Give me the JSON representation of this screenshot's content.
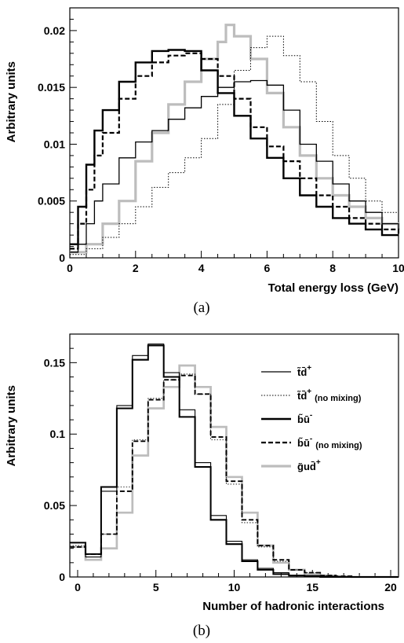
{
  "chart_data": [
    {
      "type": "line",
      "xlabel": "Total energy loss (GeV)",
      "ylabel": "Arbitrary units",
      "xlim": [
        0,
        10
      ],
      "ylim": [
        0,
        0.022
      ],
      "xticks": [
        "0",
        "2",
        "4",
        "6",
        "8",
        "10"
      ],
      "yticks": [
        "0",
        "0.005",
        "0.01",
        "0.015",
        "0.02"
      ],
      "caption": "(a)",
      "series": [
        {
          "key": "td",
          "color": "#000000",
          "x": [
            0,
            0.25,
            0.5,
            0.75,
            1,
            1.5,
            2,
            2.5,
            3,
            3.5,
            4,
            4.5,
            5,
            5.5,
            6,
            6.5,
            7,
            7.5,
            8,
            8.5,
            9,
            9.5,
            10
          ],
          "y": [
            0.0005,
            0.0012,
            0.003,
            0.005,
            0.0065,
            0.0088,
            0.0102,
            0.0112,
            0.0122,
            0.0132,
            0.0142,
            0.015,
            0.0155,
            0.0156,
            0.0152,
            0.013,
            0.01,
            0.0085,
            0.0065,
            0.005,
            0.004,
            0.003,
            0.0025
          ]
        },
        {
          "key": "td_nomix",
          "color": "#000000",
          "x": [
            0,
            0.5,
            1,
            1.5,
            2,
            2.5,
            3,
            3.5,
            4,
            4.5,
            5,
            5.5,
            6,
            6.5,
            7,
            7.5,
            8,
            8.5,
            9,
            9.5,
            10
          ],
          "y": [
            0.0003,
            0.0008,
            0.0018,
            0.003,
            0.0045,
            0.0062,
            0.0075,
            0.0088,
            0.0105,
            0.0135,
            0.0165,
            0.0185,
            0.0195,
            0.0178,
            0.0155,
            0.012,
            0.009,
            0.007,
            0.005,
            0.004,
            0.003
          ]
        },
        {
          "key": "bu",
          "color": "#000000",
          "x": [
            0,
            0.25,
            0.5,
            0.75,
            1,
            1.5,
            2,
            2.5,
            3,
            3.5,
            4,
            4.5,
            5,
            5.5,
            6,
            6.5,
            7,
            7.5,
            8,
            8.5,
            9,
            9.5,
            10
          ],
          "y": [
            0.0012,
            0.0045,
            0.0082,
            0.0112,
            0.013,
            0.0155,
            0.0172,
            0.0182,
            0.0183,
            0.0182,
            0.0165,
            0.0145,
            0.0125,
            0.0105,
            0.0088,
            0.007,
            0.0055,
            0.0045,
            0.0035,
            0.003,
            0.0025,
            0.002,
            0.002
          ]
        },
        {
          "key": "bu_nomix",
          "color": "#000000",
          "x": [
            0,
            0.25,
            0.5,
            0.75,
            1,
            1.5,
            2,
            2.5,
            3,
            3.5,
            4,
            4.5,
            5,
            5.5,
            6,
            6.5,
            7,
            7.5,
            8,
            8.5,
            9,
            9.5,
            10
          ],
          "y": [
            0.0008,
            0.003,
            0.006,
            0.009,
            0.011,
            0.014,
            0.016,
            0.0172,
            0.0178,
            0.018,
            0.0175,
            0.016,
            0.014,
            0.0115,
            0.0098,
            0.0085,
            0.007,
            0.0055,
            0.0045,
            0.0035,
            0.003,
            0.0025,
            0.002
          ]
        },
        {
          "key": "gud",
          "color": "#bdbdbd",
          "x": [
            0,
            0.5,
            1,
            1.5,
            2,
            2.5,
            3,
            3.5,
            4,
            4.5,
            4.75,
            5,
            5.5,
            6,
            6.5,
            7,
            7.5,
            8,
            8.5,
            9,
            9.5,
            10
          ],
          "y": [
            0.0005,
            0.0012,
            0.003,
            0.005,
            0.0085,
            0.011,
            0.0135,
            0.0155,
            0.0175,
            0.019,
            0.0205,
            0.0195,
            0.0175,
            0.0145,
            0.0115,
            0.009,
            0.007,
            0.0055,
            0.0045,
            0.0035,
            0.003,
            0.0025
          ]
        }
      ]
    },
    {
      "type": "line",
      "xlabel": "Number of hadronic interactions",
      "ylabel": "Arbitrary units",
      "xlim": [
        -0.5,
        20.5
      ],
      "ylim": [
        0,
        0.17
      ],
      "xticks": [
        "0",
        "5",
        "10",
        "15",
        "20"
      ],
      "yticks": [
        "0",
        "0.05",
        "0.1",
        "0.15"
      ],
      "caption": "(b)",
      "legend_position": "top-right",
      "bins_x": [
        0,
        1,
        2,
        3,
        4,
        5,
        6,
        7,
        8,
        9,
        10,
        11,
        12,
        13,
        14,
        15,
        16,
        17,
        18,
        19,
        20
      ],
      "series": [
        {
          "key": "td",
          "legend_main": "t̃d̄",
          "legend_sup": "+",
          "legend_note": "",
          "color": "#000000",
          "values": [
            0.024,
            0.014,
            0.06,
            0.12,
            0.155,
            0.163,
            0.143,
            0.117,
            0.08,
            0.043,
            0.025,
            0.012,
            0.006,
            0.003,
            0.001,
            0.001,
            0.0005,
            0,
            0,
            0,
            0
          ]
        },
        {
          "key": "td_nomix",
          "legend_main": "t̃d̄",
          "legend_sup": "+",
          "legend_note": "(no mixing)",
          "color": "#000000",
          "values": [
            0.022,
            0.016,
            0.03,
            0.063,
            0.096,
            0.125,
            0.138,
            0.142,
            0.128,
            0.096,
            0.065,
            0.038,
            0.021,
            0.011,
            0.005,
            0.003,
            0.001,
            0.0005,
            0,
            0,
            0
          ]
        },
        {
          "key": "bu",
          "legend_main": "b̃ū",
          "legend_sup": "-",
          "legend_note": "",
          "color": "#000000",
          "values": [
            0.024,
            0.016,
            0.063,
            0.118,
            0.152,
            0.162,
            0.14,
            0.112,
            0.077,
            0.04,
            0.023,
            0.011,
            0.005,
            0.002,
            0.001,
            0.0005,
            0,
            0,
            0,
            0,
            0
          ]
        },
        {
          "key": "bu_nomix",
          "legend_main": "b̃ū",
          "legend_sup": "-",
          "legend_note": "(no mixing)",
          "color": "#000000",
          "values": [
            0.021,
            0.016,
            0.03,
            0.06,
            0.095,
            0.124,
            0.138,
            0.141,
            0.128,
            0.098,
            0.067,
            0.04,
            0.022,
            0.012,
            0.005,
            0.003,
            0.001,
            0.0005,
            0,
            0,
            0
          ]
        },
        {
          "key": "gud",
          "legend_main": "g̃ud̄",
          "legend_sup": "+",
          "legend_note": "",
          "color": "#bdbdbd",
          "values": [
            0.021,
            0.012,
            0.02,
            0.045,
            0.085,
            0.118,
            0.133,
            0.148,
            0.133,
            0.105,
            0.07,
            0.045,
            0.022,
            0.01,
            0.005,
            0.002,
            0.001,
            0.0005,
            0,
            0,
            0
          ]
        }
      ]
    }
  ]
}
